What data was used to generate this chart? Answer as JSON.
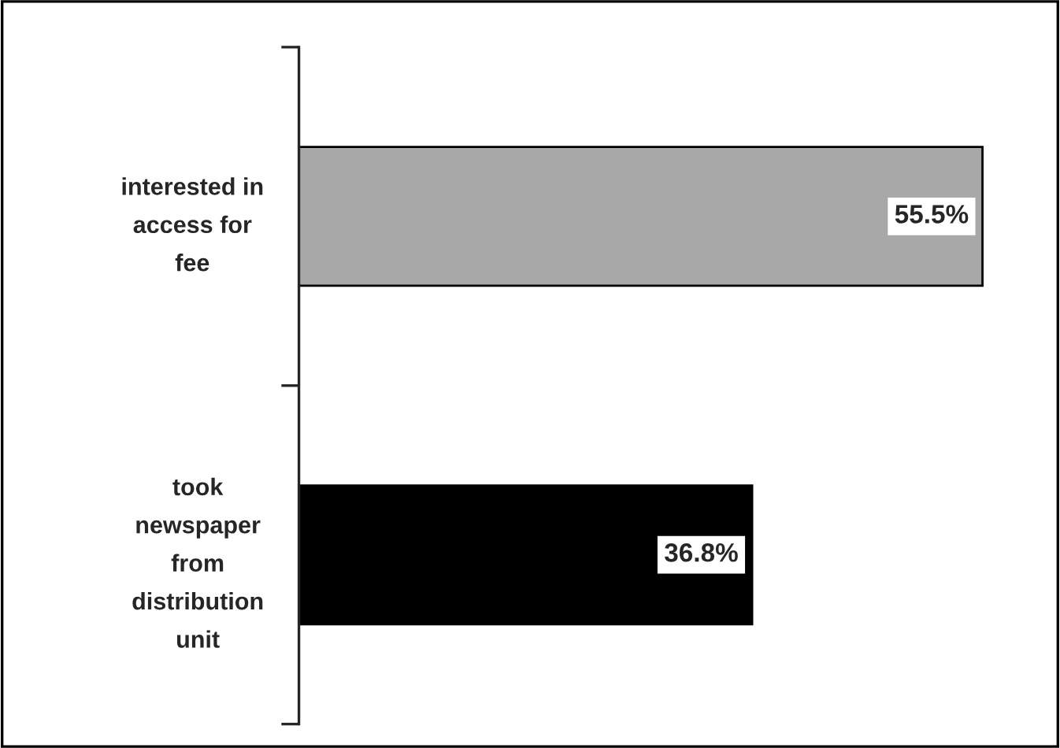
{
  "chart_data": {
    "type": "bar",
    "orientation": "horizontal",
    "categories": [
      "interested in\naccess for\nfee",
      "took\nnewspaper\nfrom\ndistribution\nunit"
    ],
    "values": [
      55.5,
      36.8
    ],
    "colors": [
      "#a8a8a8",
      "#000000"
    ],
    "value_labels": [
      "55.5%",
      "36.8%"
    ],
    "grid": false,
    "legend": false
  }
}
